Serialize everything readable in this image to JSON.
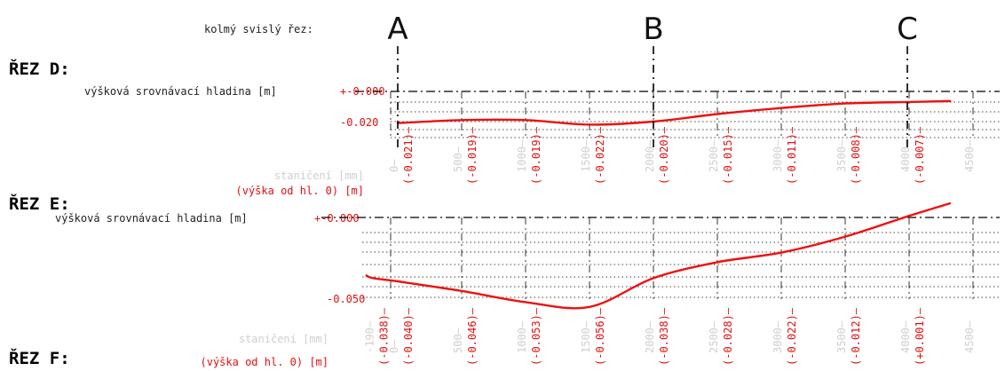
{
  "header": {
    "label": "kolmý svislý řez:"
  },
  "cuts": [
    {
      "letter": "A",
      "station": -190
    },
    {
      "letter": "B",
      "station": 1950
    },
    {
      "letter": "C",
      "station": 3950
    }
  ],
  "sections": [
    {
      "id": "D",
      "title": "ŘEZ D:",
      "reference_label": "výšková srovnávací hladina [m]",
      "reference_value": "+-0.000",
      "level_label": "-0.020",
      "level_value": -0.02,
      "station_label": "staničení [mm]",
      "height_label": "(výška od hl. 0) [m]",
      "station_ticks": [
        "0",
        "500",
        "1000",
        "1500",
        "2000",
        "2500",
        "3000",
        "3500",
        "4000",
        "4500"
      ],
      "heights": [
        {
          "station": 0,
          "label": "(-0.021)"
        },
        {
          "station": 500,
          "label": "(-0.019)"
        },
        {
          "station": 1000,
          "label": "(-0.019)"
        },
        {
          "station": 1500,
          "label": "(-0.022)"
        },
        {
          "station": 2000,
          "label": "(-0.020)"
        },
        {
          "station": 2500,
          "label": "(-0.015)"
        },
        {
          "station": 3000,
          "label": "(-0.011)"
        },
        {
          "station": 3500,
          "label": "(-0.008)"
        },
        {
          "station": 4000,
          "label": "(-0.007)"
        }
      ]
    },
    {
      "id": "E",
      "title": "ŘEZ E:",
      "reference_label": "výšková srovnávací hladina [m]",
      "reference_value": "+-0.000",
      "level_label": "-0.050",
      "level_value": -0.05,
      "station_label": "staničení [mm]",
      "height_label": "(výška od hl. 0) [m]",
      "station_ticks": [
        "-190",
        "0",
        "500",
        "1000",
        "1500",
        "2000",
        "2500",
        "3000",
        "3500",
        "4000",
        "4500"
      ],
      "heights": [
        {
          "station": -190,
          "label": "(-0.038)"
        },
        {
          "station": 0,
          "label": "(-0.040)"
        },
        {
          "station": 500,
          "label": "(-0.046)"
        },
        {
          "station": 1000,
          "label": "(-0.053)"
        },
        {
          "station": 1500,
          "label": "(-0.056)"
        },
        {
          "station": 2000,
          "label": "(-0.038)"
        },
        {
          "station": 2500,
          "label": "(-0.028)"
        },
        {
          "station": 3000,
          "label": "(-0.022)"
        },
        {
          "station": 3500,
          "label": "(-0.012)"
        },
        {
          "station": 4000,
          "label": "(+0.001)"
        }
      ]
    },
    {
      "id": "F",
      "title": "ŘEZ F:"
    }
  ],
  "colors": {
    "profile": "#ee1010",
    "labels": "#e01010",
    "stations": "#cfcfcf"
  }
}
